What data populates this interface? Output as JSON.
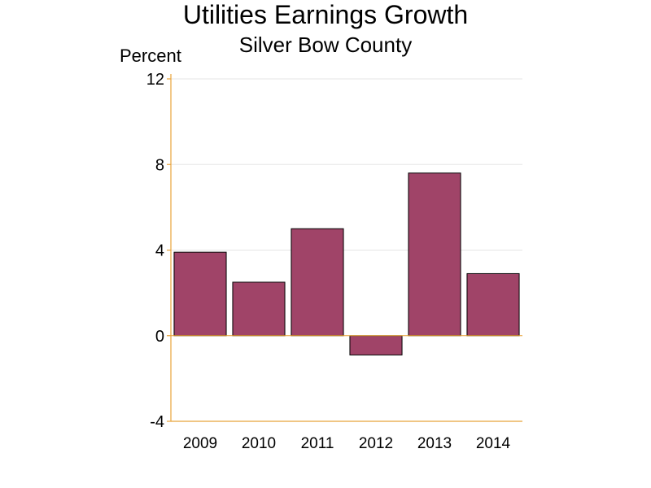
{
  "chart_data": {
    "type": "bar",
    "title": "Utilities Earnings Growth",
    "subtitle": "Silver Bow County",
    "ylabel": "Percent",
    "xlabel": "",
    "categories": [
      "2009",
      "2010",
      "2011",
      "2012",
      "2013",
      "2014"
    ],
    "values": [
      3.9,
      2.5,
      5.0,
      -0.9,
      7.6,
      2.9
    ],
    "ylim": [
      -4,
      12
    ],
    "yticks": [
      "-4",
      "0",
      "4",
      "8",
      "12"
    ],
    "grid": true,
    "colors": {
      "bar": "#A04468",
      "bar_outline": "#000000",
      "axis": "#E8A33A",
      "grid": "#E6E6E6"
    }
  }
}
